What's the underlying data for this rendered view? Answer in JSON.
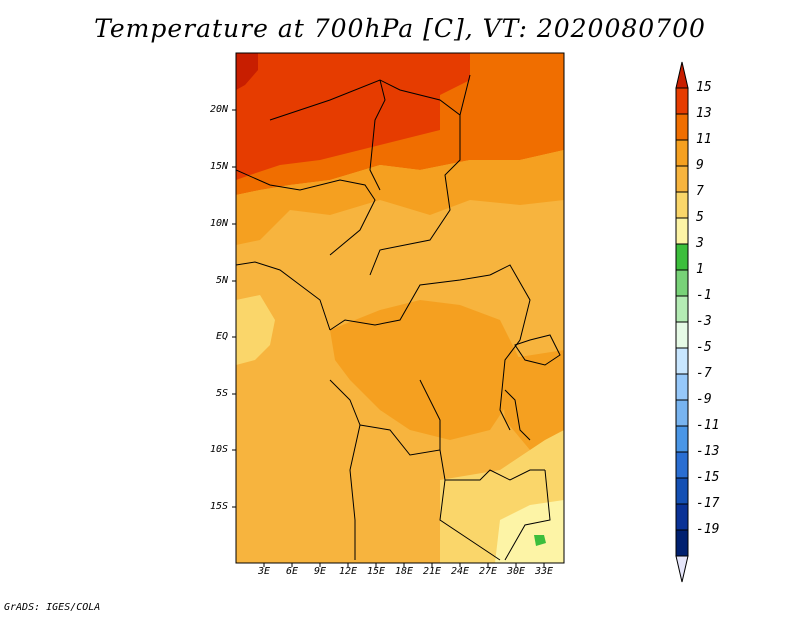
{
  "title": "Temperature at 700hPa [C], VT: 2020080700",
  "credit": "GrADS: IGES/COLA",
  "map": {
    "lat_labels": [
      "20N",
      "15N",
      "10N",
      "5N",
      "EQ",
      "5S",
      "10S",
      "15S"
    ],
    "lon_labels": [
      "3E",
      "6E",
      "9E",
      "12E",
      "15E",
      "18E",
      "21E",
      "24E",
      "27E",
      "30E",
      "33E"
    ],
    "region": "Central Africa"
  },
  "colorbar": {
    "labels": [
      "15",
      "13",
      "11",
      "9",
      "7",
      "5",
      "3",
      "1",
      "-1",
      "-3",
      "-5",
      "-7",
      "-9",
      "-11",
      "-13",
      "-15",
      "-17",
      "-19"
    ],
    "colors": [
      "#c81e00",
      "#e63c00",
      "#f06e00",
      "#f5a020",
      "#f7b43e",
      "#fad66a",
      "#fdf4a6",
      "#3cbe3c",
      "#78d278",
      "#b4ebb4",
      "#e6fae6",
      "#c8e6ff",
      "#96c8fa",
      "#78b4f0",
      "#4a96e6",
      "#2a6ed2",
      "#1450b4",
      "#0a3296",
      "#002070",
      "#e6e6fa"
    ]
  }
}
